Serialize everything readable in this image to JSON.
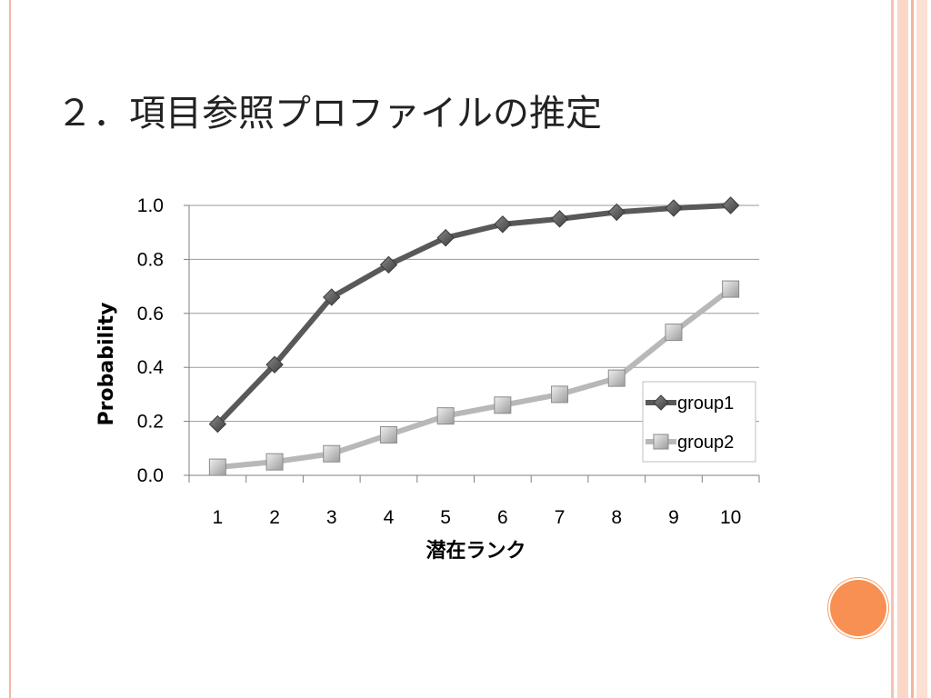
{
  "slide": {
    "title": "２．項目参照プロファイルの推定"
  },
  "colors": {
    "accent": "#f79052",
    "frame": "#f2b8a6",
    "group1": "#595959",
    "group2": "#b8b8b8",
    "grid": "#9a9a9a"
  },
  "chart_data": {
    "type": "line",
    "x": [
      1,
      2,
      3,
      4,
      5,
      6,
      7,
      8,
      9,
      10
    ],
    "x_tick_labels": [
      "1",
      "2",
      "3",
      "4",
      "5",
      "6",
      "7",
      "8",
      "9",
      "10"
    ],
    "y_tick_labels": [
      "0.0",
      "0.2",
      "0.4",
      "0.6",
      "0.8",
      "1.0"
    ],
    "ylim": [
      0,
      1
    ],
    "xlabel": "潜在ランク",
    "ylabel": "Probability",
    "grid": true,
    "legend_position": "right",
    "series": [
      {
        "name": "group1",
        "marker": "diamond",
        "values": [
          0.19,
          0.41,
          0.66,
          0.78,
          0.88,
          0.93,
          0.95,
          0.975,
          0.99,
          1.0
        ]
      },
      {
        "name": "group2",
        "marker": "square",
        "values": [
          0.03,
          0.05,
          0.08,
          0.15,
          0.22,
          0.26,
          0.3,
          0.36,
          0.53,
          0.69
        ]
      }
    ]
  }
}
